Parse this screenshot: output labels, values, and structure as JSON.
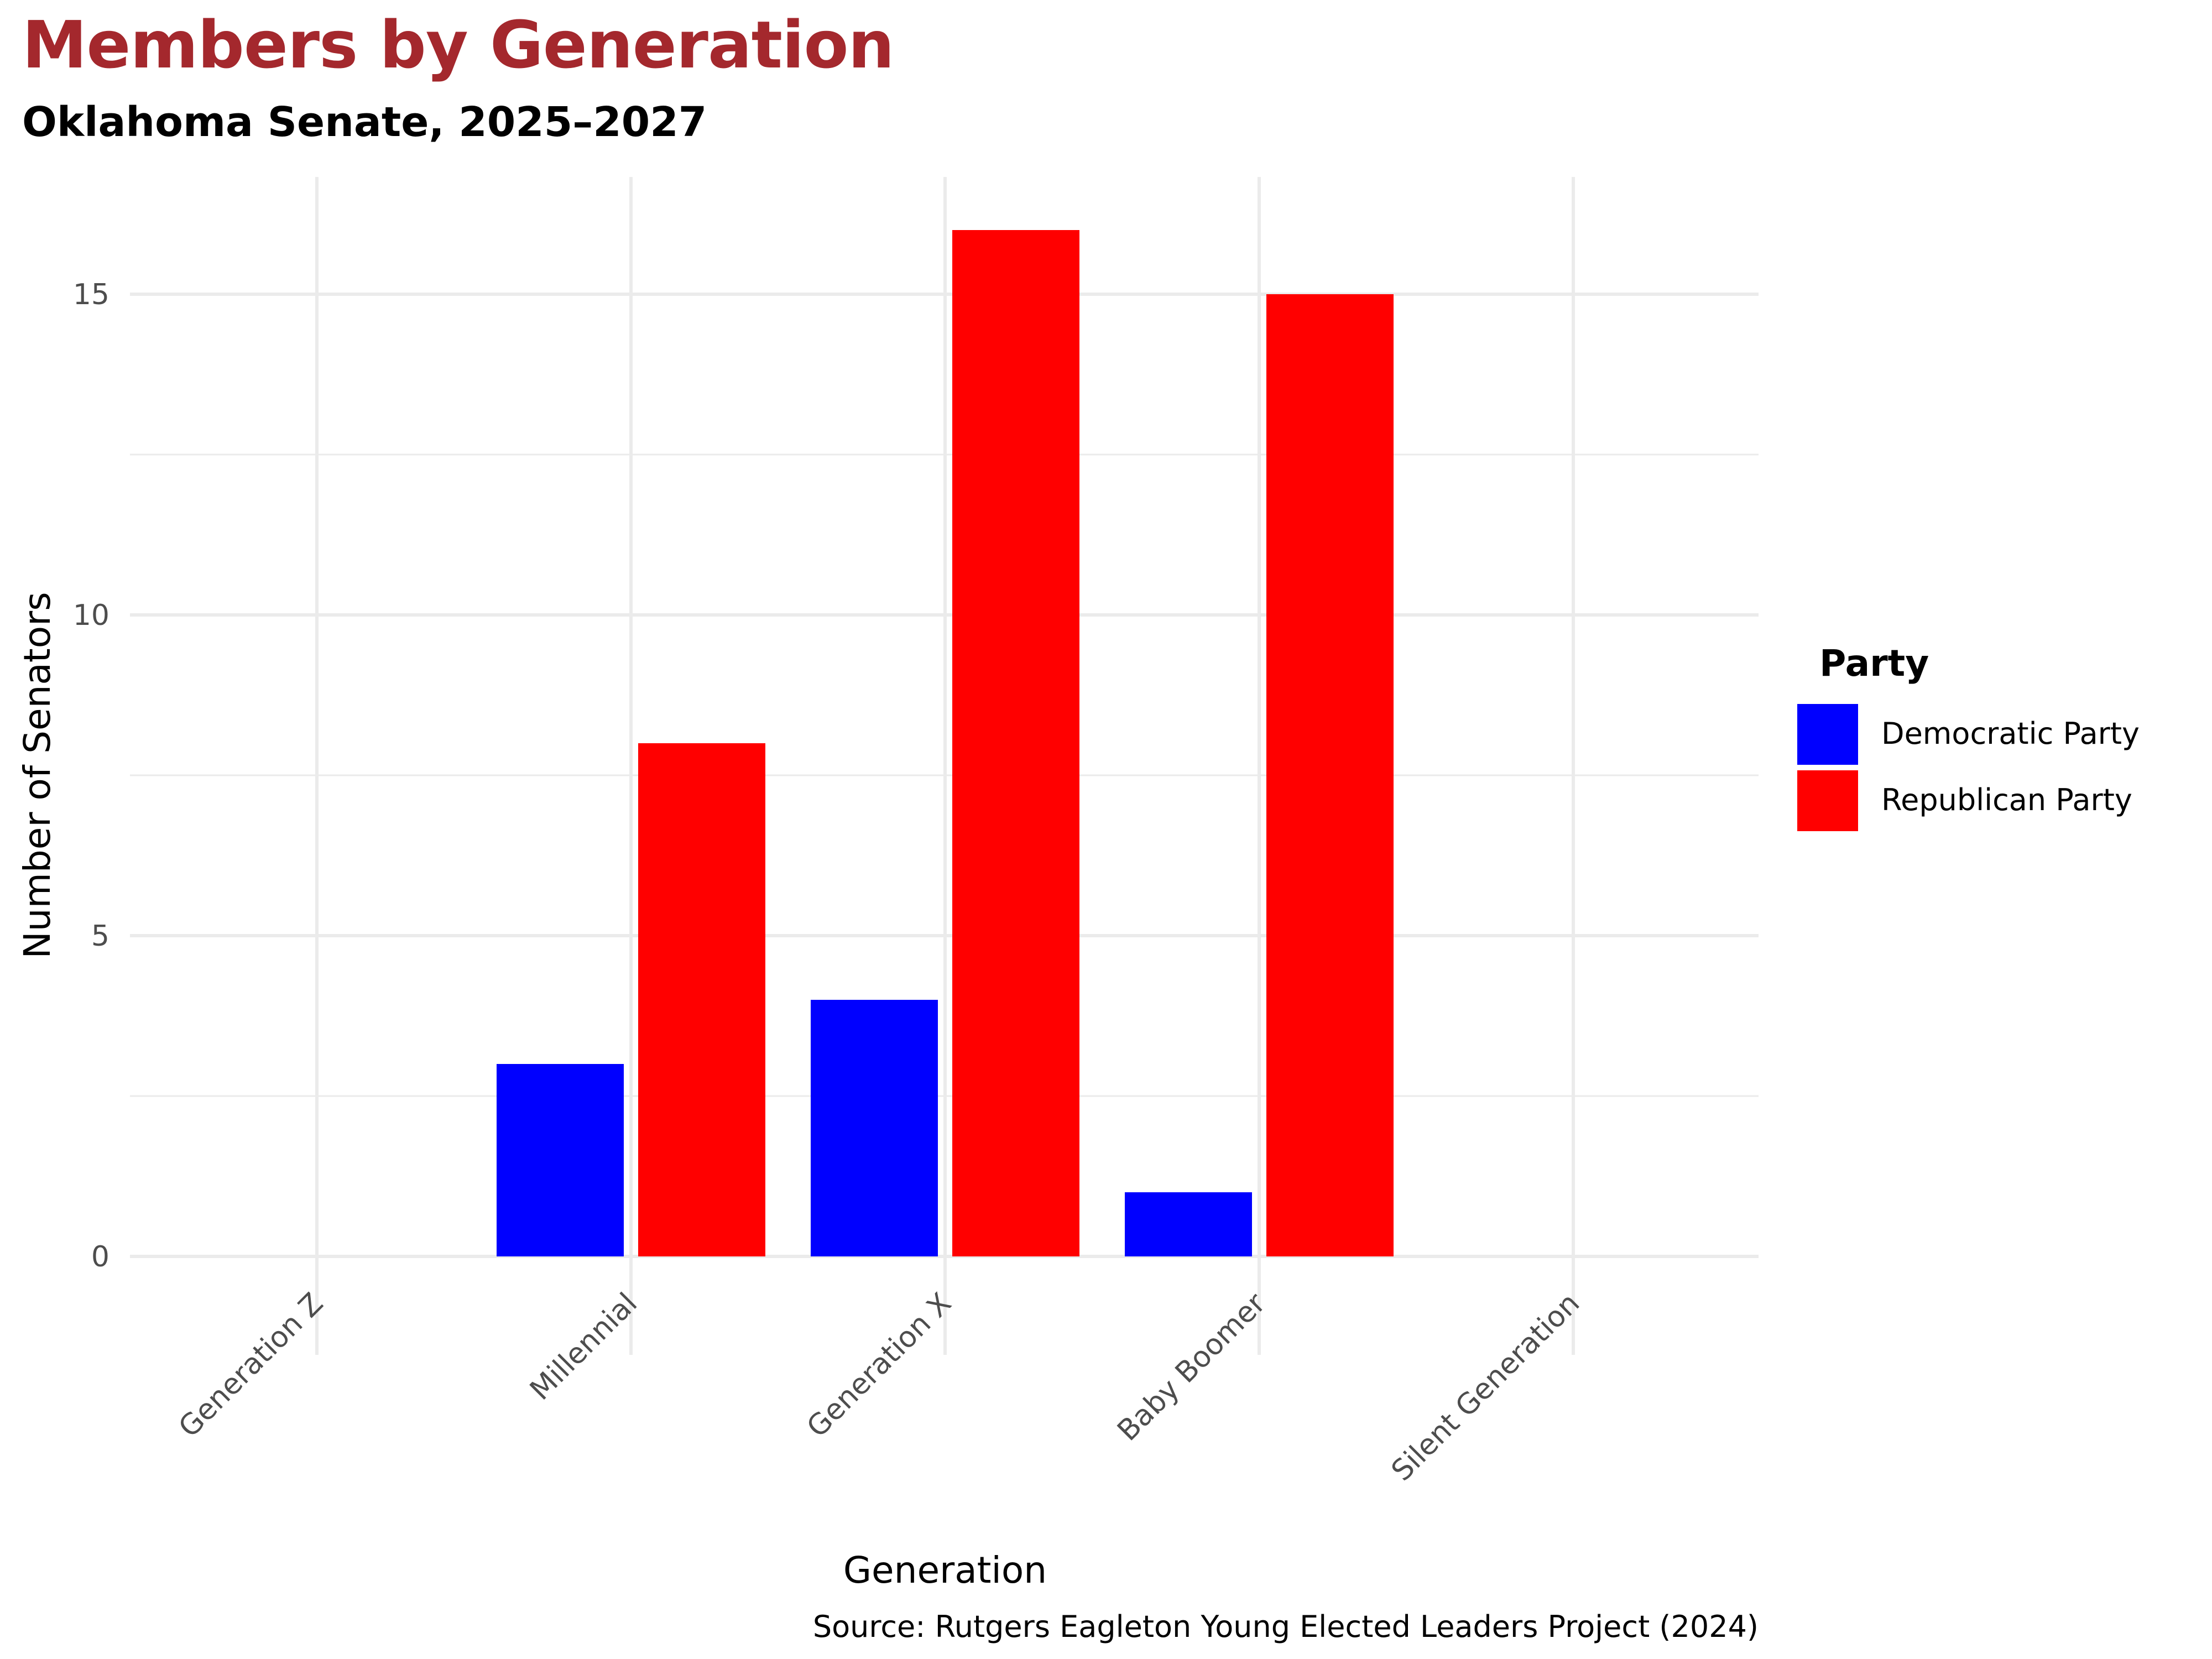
{
  "chart_data": {
    "type": "bar",
    "title": "Members by Generation",
    "subtitle": "Oklahoma Senate, 2025–2027",
    "xlabel": "Generation",
    "ylabel": "Number of Senators",
    "caption": "Source: Rutgers Eagleton Young Elected Leaders Project (2024)",
    "categories": [
      "Generation Z",
      "Millennial",
      "Generation X",
      "Baby Boomer",
      "Silent Generation"
    ],
    "series": [
      {
        "name": "Democratic Party",
        "color": "#0000ff",
        "values": [
          0,
          3,
          4,
          1,
          0
        ]
      },
      {
        "name": "Republican Party",
        "color": "#ff0000",
        "values": [
          0,
          8,
          16,
          15,
          0
        ]
      }
    ],
    "ylim": [
      -1.6,
      17.5
    ],
    "yticks": [
      0,
      5,
      10,
      15
    ],
    "yticks_minor": [
      2.5,
      7.5,
      12.5
    ],
    "grid": true,
    "legend": {
      "title": "Party",
      "position": "right"
    },
    "colors": {
      "title": "#a4282d",
      "grid": "#ebebeb",
      "tick_text": "#4d4d4d"
    }
  }
}
